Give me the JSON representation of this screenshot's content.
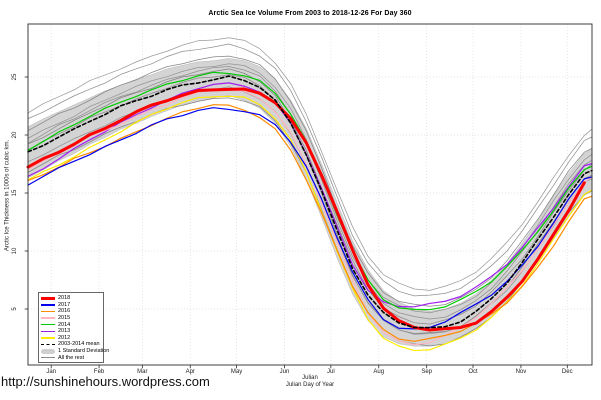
{
  "page": {
    "url_text": "http://sunshinehours.wordpress.com"
  },
  "chart_data": {
    "type": "line",
    "title": "Arctic Sea Ice Volume From 2003 to 2018-12-26  For Day 360",
    "ylabel": "Arctic Ice Thickness in 1000s of cubic km.",
    "xlabel_line1": "Julian",
    "xlabel_line2": "Julian Day of Year",
    "grid": "dotted",
    "legend_position": "bottom-left",
    "x_range_days": [
      0,
      365
    ],
    "y_range": [
      0.2,
      29.6
    ],
    "y_ticks": [
      5,
      10,
      15,
      20,
      25
    ],
    "x_ticks": {
      "months": [
        "Jan",
        "Feb",
        "Mar",
        "Apr",
        "May",
        "Jun",
        "Jul",
        "Aug",
        "Sep",
        "Oct",
        "Nov",
        "Dec"
      ],
      "tick_days": [
        15,
        46,
        74,
        105,
        135,
        166,
        196,
        227,
        258,
        288,
        319,
        349
      ]
    },
    "days": [
      0,
      10,
      20,
      30,
      40,
      50,
      60,
      70,
      80,
      90,
      100,
      110,
      120,
      130,
      140,
      150,
      160,
      170,
      180,
      190,
      200,
      210,
      220,
      230,
      240,
      250,
      260,
      270,
      280,
      290,
      300,
      310,
      320,
      330,
      340,
      350,
      360,
      365
    ],
    "band": {
      "label": "1 Standard Deviation",
      "color": "#cfcfcf",
      "mean_ref": "2003-2014 mean",
      "sd": [
        2.2,
        2.2,
        2.1,
        2.1,
        2.0,
        2.0,
        1.9,
        1.9,
        1.8,
        1.8,
        1.7,
        1.7,
        1.6,
        1.6,
        1.7,
        1.8,
        1.9,
        2.0,
        2.2,
        2.3,
        2.4,
        2.3,
        2.2,
        2.0,
        1.8,
        1.6,
        1.5,
        1.5,
        1.5,
        1.5,
        1.6,
        1.6,
        1.7,
        1.7,
        1.8,
        1.8,
        1.8,
        1.8
      ]
    },
    "series": [
      {
        "name": "2003",
        "role": "all-the-rest",
        "color": "#9a9a9a",
        "width": 0.75,
        "values": [
          21.9,
          22.6,
          23.3,
          23.9,
          24.6,
          25.2,
          25.8,
          26.3,
          26.8,
          27.3,
          27.7,
          28.0,
          28.2,
          28.4,
          28.1,
          27.5,
          26.3,
          24.4,
          21.8,
          18.6,
          15.2,
          12.0,
          9.6,
          8.0,
          7.2,
          6.8,
          6.7,
          6.9,
          7.4,
          8.2,
          9.3,
          10.7,
          12.4,
          14.3,
          16.3,
          18.3,
          20.0,
          20.4
        ]
      },
      {
        "name": "2004",
        "role": "all-the-rest",
        "color": "#8f8f8f",
        "width": 0.75,
        "values": [
          21.3,
          22.0,
          22.7,
          23.3,
          24.0,
          24.6,
          25.2,
          25.7,
          26.2,
          26.7,
          27.1,
          27.4,
          27.6,
          27.8,
          27.5,
          26.9,
          25.7,
          23.8,
          21.2,
          18.0,
          14.6,
          11.4,
          9.0,
          7.4,
          6.6,
          6.2,
          6.1,
          6.3,
          6.8,
          7.6,
          8.7,
          10.1,
          11.8,
          13.7,
          15.7,
          17.7,
          19.4,
          19.8
        ]
      },
      {
        "name": "2005",
        "role": "all-the-rest",
        "color": "#858585",
        "width": 0.75,
        "values": [
          20.4,
          21.1,
          21.8,
          22.4,
          23.1,
          23.7,
          24.3,
          24.8,
          25.3,
          25.8,
          26.2,
          26.5,
          26.7,
          26.9,
          26.6,
          26.0,
          24.8,
          22.9,
          20.3,
          17.1,
          13.7,
          10.5,
          8.1,
          6.5,
          5.7,
          5.3,
          5.2,
          5.4,
          5.9,
          6.7,
          7.8,
          9.2,
          10.9,
          12.8,
          14.8,
          16.8,
          18.5,
          18.9
        ]
      },
      {
        "name": "2006",
        "role": "all-the-rest",
        "color": "#959595",
        "width": 0.75,
        "values": [
          19.7,
          20.4,
          21.1,
          21.7,
          22.4,
          23.0,
          23.6,
          24.1,
          24.6,
          25.1,
          25.5,
          25.8,
          26.0,
          26.2,
          25.9,
          25.3,
          24.1,
          22.2,
          19.6,
          16.4,
          13.0,
          9.9,
          7.6,
          6.0,
          5.2,
          4.8,
          4.7,
          4.9,
          5.4,
          6.2,
          7.3,
          8.7,
          10.3,
          12.2,
          14.2,
          16.2,
          17.9,
          18.3
        ]
      },
      {
        "name": "2007",
        "role": "all-the-rest",
        "color": "#808080",
        "width": 0.75,
        "values": [
          19.2,
          19.9,
          20.6,
          21.2,
          21.9,
          22.5,
          23.1,
          23.6,
          24.1,
          24.6,
          25.0,
          25.3,
          25.5,
          25.6,
          25.3,
          24.6,
          23.3,
          21.2,
          18.4,
          15.0,
          11.4,
          8.0,
          5.5,
          3.9,
          3.2,
          2.9,
          2.9,
          3.1,
          3.6,
          4.4,
          5.5,
          6.9,
          8.6,
          10.5,
          12.5,
          14.5,
          16.2,
          16.6
        ]
      },
      {
        "name": "2008",
        "role": "all-the-rest",
        "color": "#909090",
        "width": 0.75,
        "values": [
          19.4,
          20.1,
          20.8,
          21.4,
          22.1,
          22.7,
          23.3,
          23.8,
          24.3,
          24.8,
          25.2,
          25.5,
          25.7,
          25.9,
          25.6,
          25.0,
          23.8,
          21.9,
          19.3,
          16.1,
          12.7,
          9.5,
          7.1,
          5.5,
          4.7,
          4.3,
          4.2,
          4.4,
          4.9,
          5.7,
          6.8,
          8.2,
          9.9,
          11.8,
          13.8,
          15.8,
          17.5,
          17.9
        ]
      },
      {
        "name": "2009",
        "role": "all-the-rest",
        "color": "#888888",
        "width": 0.75,
        "values": [
          18.7,
          19.4,
          20.1,
          20.7,
          21.4,
          22.0,
          22.6,
          23.1,
          23.6,
          24.1,
          24.5,
          24.8,
          25.0,
          25.2,
          24.9,
          24.3,
          23.1,
          21.2,
          18.7,
          15.5,
          12.2,
          9.1,
          6.7,
          5.1,
          4.3,
          3.9,
          3.8,
          4.0,
          4.5,
          5.3,
          6.4,
          7.8,
          9.4,
          11.3,
          13.3,
          15.3,
          17.0,
          17.4
        ]
      },
      {
        "name": "2010",
        "role": "all-the-rest",
        "color": "#929292",
        "width": 0.75,
        "values": [
          17.6,
          18.3,
          19.0,
          19.6,
          20.3,
          20.9,
          21.5,
          22.0,
          22.5,
          23.0,
          23.4,
          23.7,
          23.9,
          24.1,
          23.8,
          23.2,
          22.0,
          20.1,
          17.5,
          14.3,
          11.0,
          7.9,
          5.6,
          4.0,
          3.3,
          2.9,
          2.8,
          3.0,
          3.5,
          4.3,
          5.4,
          6.7,
          8.3,
          10.2,
          12.2,
          14.2,
          15.8,
          16.2
        ]
      },
      {
        "name": "2011",
        "role": "all-the-rest",
        "color": "#868686",
        "width": 0.75,
        "values": [
          16.8,
          17.5,
          18.2,
          18.8,
          19.5,
          20.1,
          20.7,
          21.2,
          21.7,
          22.2,
          22.6,
          22.9,
          23.1,
          23.3,
          23.0,
          22.4,
          21.2,
          19.3,
          16.7,
          13.5,
          10.2,
          7.0,
          4.7,
          3.1,
          2.3,
          1.9,
          1.8,
          2.0,
          2.5,
          3.3,
          4.4,
          5.7,
          7.3,
          9.2,
          11.2,
          13.2,
          14.8,
          15.2
        ]
      },
      {
        "name": "2012",
        "role": "year",
        "color": "#ffeb00",
        "width": 1.2,
        "values": [
          16.1,
          16.8,
          17.5,
          18.2,
          18.9,
          19.6,
          20.3,
          21.0,
          21.7,
          22.3,
          22.8,
          23.2,
          23.4,
          23.4,
          23.2,
          22.6,
          21.4,
          19.5,
          16.8,
          13.5,
          10.0,
          6.8,
          4.2,
          2.5,
          1.7,
          1.4,
          1.5,
          1.9,
          2.5,
          3.3,
          4.3,
          5.6,
          7.1,
          8.9,
          10.9,
          13.0,
          14.9,
          15.2
        ]
      },
      {
        "name": "2013",
        "role": "year",
        "color": "#a020f0",
        "width": 1.2,
        "values": [
          16.4,
          17.2,
          18.0,
          18.8,
          19.6,
          20.3,
          21.0,
          21.7,
          22.4,
          23.0,
          23.6,
          24.1,
          24.4,
          24.4,
          24.2,
          23.7,
          22.7,
          21.0,
          18.5,
          15.4,
          12.1,
          8.9,
          6.6,
          5.5,
          5.2,
          5.2,
          5.4,
          5.7,
          6.2,
          6.9,
          7.8,
          8.9,
          10.3,
          11.9,
          13.7,
          15.6,
          17.3,
          17.6
        ]
      },
      {
        "name": "2014",
        "role": "year",
        "color": "#00cc00",
        "width": 1.2,
        "values": [
          18.8,
          19.5,
          20.2,
          20.9,
          21.6,
          22.2,
          22.8,
          23.4,
          23.9,
          24.4,
          24.8,
          25.1,
          25.3,
          25.3,
          25.1,
          24.6,
          23.6,
          21.9,
          19.5,
          16.5,
          13.2,
          10.0,
          7.4,
          5.8,
          5.1,
          4.9,
          5.0,
          5.3,
          5.8,
          6.5,
          7.4,
          8.6,
          10.0,
          11.7,
          13.5,
          15.4,
          17.1,
          17.4
        ]
      },
      {
        "name": "2015",
        "role": "year",
        "color": "#ffb6c1",
        "width": 1.2,
        "values": [
          17.0,
          17.7,
          18.4,
          19.1,
          19.8,
          20.4,
          21.0,
          21.6,
          22.2,
          22.7,
          23.2,
          23.6,
          23.9,
          23.9,
          23.7,
          23.2,
          22.1,
          20.2,
          17.5,
          14.2,
          10.7,
          7.4,
          4.7,
          3.0,
          2.2,
          2.0,
          2.2,
          2.7,
          3.4,
          4.3,
          5.4,
          6.8,
          8.4,
          10.2,
          12.2,
          14.2,
          16.0,
          16.3
        ]
      },
      {
        "name": "2016",
        "role": "year",
        "color": "#ff8c00",
        "width": 1.2,
        "values": [
          16.0,
          16.6,
          17.2,
          17.9,
          18.5,
          19.1,
          19.7,
          20.3,
          20.9,
          21.4,
          21.9,
          22.3,
          22.6,
          22.5,
          22.2,
          21.6,
          20.5,
          18.7,
          16.2,
          13.2,
          10.0,
          7.0,
          4.7,
          3.2,
          2.5,
          2.3,
          2.4,
          2.7,
          3.1,
          3.7,
          4.5,
          5.6,
          7.0,
          8.6,
          10.5,
          12.6,
          14.4,
          14.7
        ]
      },
      {
        "name": "2017",
        "role": "year",
        "color": "#0000ee",
        "width": 1.2,
        "values": [
          15.7,
          16.4,
          17.1,
          17.8,
          18.4,
          19.0,
          19.6,
          20.2,
          20.8,
          21.3,
          21.7,
          22.1,
          22.3,
          22.3,
          22.1,
          21.7,
          20.9,
          19.4,
          17.2,
          14.4,
          11.2,
          8.2,
          5.8,
          4.2,
          3.4,
          3.2,
          3.4,
          3.9,
          4.6,
          5.4,
          6.3,
          7.4,
          8.8,
          10.5,
          12.4,
          14.4,
          16.2,
          16.4
        ]
      },
      {
        "name": "2018",
        "role": "year",
        "color": "#ff0000",
        "width": 3.0,
        "values": [
          17.2,
          17.9,
          18.6,
          19.3,
          20.0,
          20.6,
          21.3,
          21.9,
          22.5,
          23.0,
          23.4,
          23.8,
          24.0,
          24.0,
          23.9,
          23.6,
          22.8,
          21.3,
          19.3,
          16.6,
          13.4,
          10.1,
          7.2,
          5.1,
          3.9,
          3.4,
          3.2,
          3.2,
          3.4,
          3.9,
          4.8,
          6.0,
          7.5,
          9.3,
          11.3,
          13.5,
          15.9
        ]
      },
      {
        "name": "2003-2014 mean",
        "role": "mean",
        "color": "#000000",
        "width": 1.6,
        "dash": "3.5 2.6",
        "values": [
          18.5,
          19.2,
          19.9,
          20.5,
          21.2,
          21.8,
          22.4,
          22.9,
          23.4,
          23.9,
          24.3,
          24.6,
          24.8,
          25.0,
          24.7,
          24.1,
          22.9,
          21.0,
          18.4,
          15.2,
          11.8,
          8.6,
          6.2,
          4.6,
          3.8,
          3.4,
          3.3,
          3.5,
          4.0,
          4.8,
          5.9,
          7.3,
          9.0,
          10.9,
          12.9,
          14.9,
          16.6,
          17.0
        ]
      }
    ],
    "legend": {
      "items": [
        {
          "label": "2018",
          "swatch": "line-thick",
          "color": "#ff0000"
        },
        {
          "label": "2017",
          "swatch": "line",
          "color": "#0000ee"
        },
        {
          "label": "2016",
          "swatch": "line",
          "color": "#ff8c00"
        },
        {
          "label": "2015",
          "swatch": "line",
          "color": "#ffb6c1"
        },
        {
          "label": "2014",
          "swatch": "line",
          "color": "#00cc00"
        },
        {
          "label": "2013",
          "swatch": "line",
          "color": "#a020f0"
        },
        {
          "label": "2012",
          "swatch": "line",
          "color": "#ffeb00"
        },
        {
          "label": "2003-2014 mean",
          "swatch": "dashed",
          "color": "#000000"
        },
        {
          "label": "1 Standard Deviation",
          "swatch": "band",
          "color": "#cfcfcf"
        },
        {
          "label": "All the rest",
          "swatch": "line",
          "color": "#8a8a8a"
        }
      ]
    }
  }
}
